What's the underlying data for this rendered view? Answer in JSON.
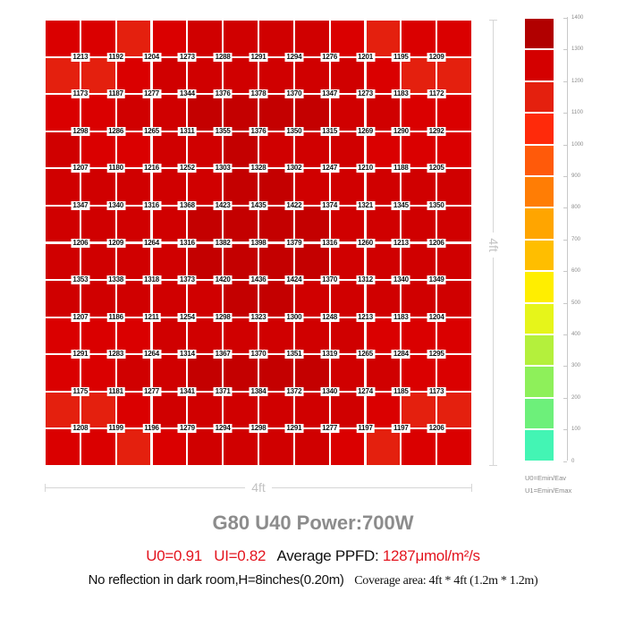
{
  "chart_data": {
    "type": "heatmap",
    "title": "G80 U40  Power:700W",
    "grid_size": {
      "rows": 11,
      "cols": 11
    },
    "x_extent": "4ft",
    "y_extent": "4ft",
    "units": "μmol/m²/s",
    "values": [
      [
        1213,
        1192,
        1204,
        1273,
        1288,
        1291,
        1294,
        1276,
        1201,
        1195,
        1209
      ],
      [
        1173,
        1187,
        1277,
        1344,
        1376,
        1378,
        1370,
        1347,
        1273,
        1183,
        1172
      ],
      [
        1298,
        1286,
        1265,
        1311,
        1355,
        1376,
        1350,
        1315,
        1269,
        1290,
        1292
      ],
      [
        1207,
        1180,
        1216,
        1252,
        1303,
        1328,
        1302,
        1247,
        1210,
        1188,
        1205
      ],
      [
        1347,
        1340,
        1316,
        1368,
        1423,
        1435,
        1422,
        1374,
        1321,
        1345,
        1350
      ],
      [
        1206,
        1209,
        1264,
        1316,
        1382,
        1398,
        1379,
        1316,
        1260,
        1213,
        1206
      ],
      [
        1353,
        1338,
        1318,
        1373,
        1420,
        1436,
        1424,
        1370,
        1312,
        1340,
        1349
      ],
      [
        1207,
        1186,
        1211,
        1254,
        1298,
        1323,
        1300,
        1248,
        1213,
        1183,
        1204
      ],
      [
        1291,
        1283,
        1264,
        1314,
        1367,
        1370,
        1351,
        1319,
        1265,
        1284,
        1295
      ],
      [
        1175,
        1181,
        1277,
        1341,
        1371,
        1384,
        1372,
        1340,
        1274,
        1185,
        1173
      ],
      [
        1208,
        1199,
        1196,
        1279,
        1294,
        1298,
        1291,
        1277,
        1197,
        1197,
        1206
      ]
    ],
    "colorbar": {
      "range": [
        0,
        1400
      ],
      "ticks": [
        1400,
        1300,
        1200,
        1100,
        1000,
        900,
        800,
        700,
        600,
        500,
        400,
        300,
        200,
        100,
        0
      ],
      "bins": [
        {
          "from": 1300,
          "to": 1400,
          "color": "#b10000"
        },
        {
          "from": 1200,
          "to": 1300,
          "color": "#d40000"
        },
        {
          "from": 1100,
          "to": 1200,
          "color": "#e4200e"
        },
        {
          "from": 1000,
          "to": 1100,
          "color": "#ff2a0a"
        },
        {
          "from": 900,
          "to": 1000,
          "color": "#ff5a0a"
        },
        {
          "from": 800,
          "to": 900,
          "color": "#ff7d05"
        },
        {
          "from": 700,
          "to": 800,
          "color": "#ffa500"
        },
        {
          "from": 600,
          "to": 700,
          "color": "#ffbe00"
        },
        {
          "from": 500,
          "to": 600,
          "color": "#ffee00"
        },
        {
          "from": 400,
          "to": 500,
          "color": "#e6f51a"
        },
        {
          "from": 300,
          "to": 400,
          "color": "#b4f03c"
        },
        {
          "from": 200,
          "to": 300,
          "color": "#8ef05a"
        },
        {
          "from": 100,
          "to": 200,
          "color": "#6df07a"
        },
        {
          "from": 0,
          "to": 100,
          "color": "#43f5b4"
        }
      ]
    },
    "annotations": [
      "U0=0.91",
      "U1=0.82",
      "Average PPFD: 1287μmol/m²/s"
    ]
  },
  "dimensions": {
    "horizontal": "4ft",
    "vertical": "4ft"
  },
  "legend": {
    "formula_u0": "U0=Emin/Eav",
    "formula_u1": "U1=Emin/Emax"
  },
  "title": "G80 U40  Power:700W",
  "stats": {
    "u0": "U0=0.91",
    "u1": "UI=0.82",
    "avg_label": "Average PPFD: ",
    "avg_value": "1287μmol/m²/s"
  },
  "footer": {
    "conditions": "No reflection in dark room,H=8inches(0.20m)",
    "coverage": "Coverage area: 4ft * 4ft (1.2m * 1.2m)"
  },
  "cell_colors": {
    "lighter": "#e4200e",
    "mid": "#d80000",
    "dark": "#c40000"
  }
}
